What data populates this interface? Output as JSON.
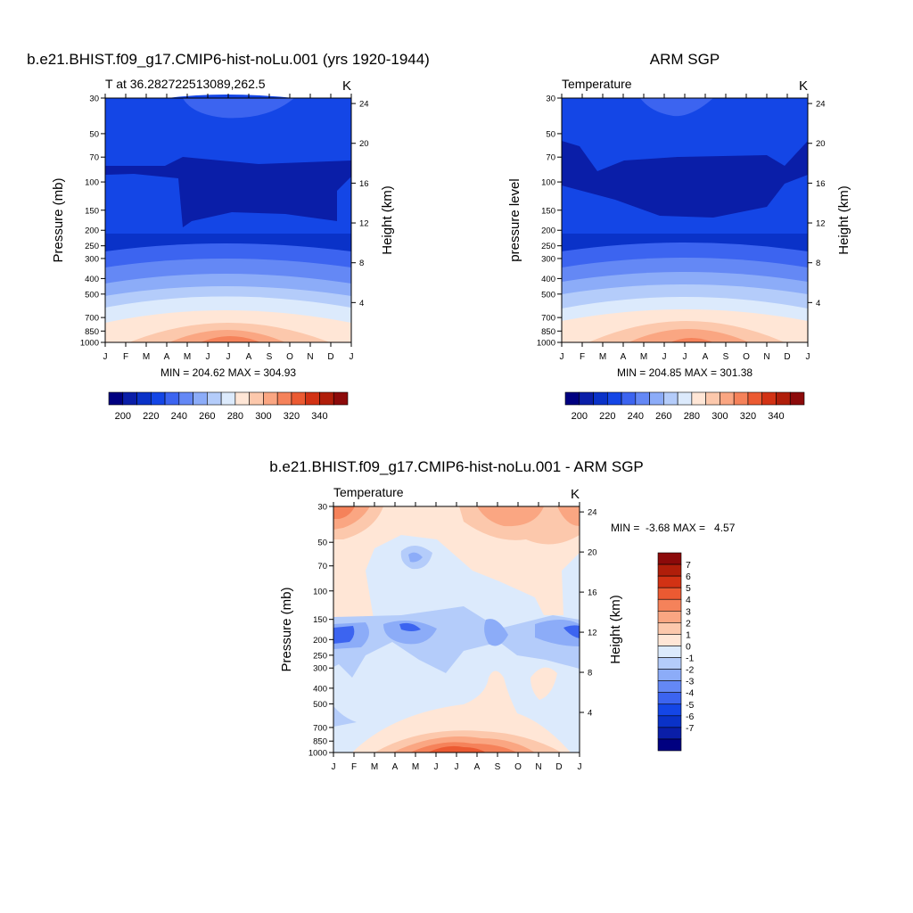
{
  "colors": {
    "abs_palette": [
      "#000080",
      "#0a1ea8",
      "#0a32c8",
      "#1446e6",
      "#3c64f0",
      "#6488f5",
      "#8cacf8",
      "#b4ccfa",
      "#dceafc",
      "#ffe6d6",
      "#fcc8ac",
      "#faa682",
      "#f5825a",
      "#eb5a32",
      "#d23214",
      "#b01e0a",
      "#8c0a0a"
    ],
    "diff_palette": [
      "#000080",
      "#0a1ea8",
      "#0a32c8",
      "#1446e6",
      "#3c64f0",
      "#6488f5",
      "#8cacf8",
      "#b4ccfa",
      "#dceafc",
      "#ffe6d6",
      "#fcc8ac",
      "#faa682",
      "#f5825a",
      "#eb5a32",
      "#d23214",
      "#b01e0a",
      "#8c0a0a"
    ]
  },
  "chart_data": [
    {
      "type": "contour",
      "title": "b.e21.BHIST.f09_g17.CMIP6-hist-noLu.001 (yrs 1920-1944)",
      "subtitle_left": "T at 36.282722513089,262.5",
      "subtitle_right": "K",
      "ylabel": "Pressure (mb)",
      "ylabel_right": "Height (km)",
      "x_ticks": [
        "J",
        "F",
        "M",
        "A",
        "M",
        "J",
        "J",
        "A",
        "S",
        "O",
        "N",
        "D",
        "J"
      ],
      "y_ticks": [
        30,
        50,
        70,
        100,
        150,
        200,
        250,
        300,
        400,
        500,
        700,
        850,
        1000
      ],
      "ylim": [
        30,
        1000
      ],
      "height_ticks": [
        24,
        20,
        16,
        12,
        8,
        4
      ],
      "stats": "MIN = 204.62 MAX = 304.93",
      "colorbar_labels": [
        "200",
        "220",
        "240",
        "260",
        "280",
        "300",
        "320",
        "340"
      ]
    },
    {
      "type": "contour",
      "title": "ARM SGP",
      "subtitle_left": "Temperature",
      "subtitle_right": "K",
      "ylabel": "pressure level",
      "ylabel_right": "Height (km)",
      "x_ticks": [
        "J",
        "F",
        "M",
        "A",
        "M",
        "J",
        "J",
        "A",
        "S",
        "O",
        "N",
        "D",
        "J"
      ],
      "y_ticks": [
        30,
        50,
        70,
        100,
        150,
        200,
        250,
        300,
        400,
        500,
        700,
        850,
        1000
      ],
      "ylim": [
        30,
        1000
      ],
      "height_ticks": [
        24,
        20,
        16,
        12,
        8,
        4
      ],
      "stats": "MIN = 204.85 MAX = 301.38",
      "colorbar_labels": [
        "200",
        "220",
        "240",
        "260",
        "280",
        "300",
        "320",
        "340"
      ]
    },
    {
      "type": "contour",
      "title": "b.e21.BHIST.f09_g17.CMIP6-hist-noLu.001 - ARM SGP",
      "subtitle_left": "Temperature",
      "subtitle_right": "K",
      "ylabel": "Pressure (mb)",
      "ylabel_right": "Height (km)",
      "x_ticks": [
        "J",
        "F",
        "M",
        "A",
        "M",
        "J",
        "J",
        "A",
        "S",
        "O",
        "N",
        "D",
        "J"
      ],
      "y_ticks": [
        30,
        50,
        70,
        100,
        150,
        200,
        250,
        300,
        400,
        500,
        700,
        850,
        1000
      ],
      "ylim": [
        30,
        1000
      ],
      "height_ticks": [
        24,
        20,
        16,
        12,
        8,
        4
      ],
      "stats": "MIN =  -3.68 MAX =   4.57",
      "colorbar_labels": [
        "7",
        "6",
        "5",
        "4",
        "3",
        "2",
        "1",
        "0",
        "-1",
        "-2",
        "-3",
        "-4",
        "-5",
        "-6",
        "-7"
      ]
    }
  ]
}
